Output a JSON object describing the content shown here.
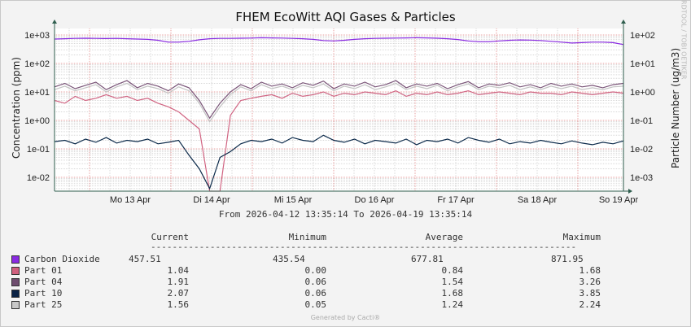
{
  "chart_data": {
    "type": "line",
    "title": "FHEM EcoWitt AQI Gases & Particles",
    "ylabel": "Concentration (ppm)",
    "ylabel_right": "Particle Number (ug/m3)",
    "yscale": "log",
    "ylim": [
      0.0032,
      1700
    ],
    "yticks": [
      "1e-02",
      "1e-01",
      "1e+00",
      "1e+01",
      "1e+02",
      "1e+03"
    ],
    "yticks_right": [
      "1e-03",
      "1e-02",
      "1e-01",
      "1e+00",
      "1e+01",
      "1e+02"
    ],
    "xticks": [
      "Mo 13 Apr",
      "Di 14 Apr",
      "Mi 15 Apr",
      "Do 16 Apr",
      "Fr 17 Apr",
      "Sa 18 Apr",
      "So 19 Apr"
    ],
    "time_range": "From 2026-04-12 13:35:14 To 2026-04-19 13:35:14",
    "watermark": "RRDTOOL / TOBI OETIKER",
    "series": [
      {
        "name": "Part 25",
        "color": "#c4c4c4",
        "values": [
          12,
          16,
          11,
          14,
          18,
          10,
          15,
          20,
          12,
          16,
          13,
          9,
          15,
          11,
          4,
          0.9,
          3,
          8,
          15,
          11,
          18,
          13,
          16,
          12,
          17,
          14,
          19,
          11,
          16,
          13,
          18,
          12,
          15,
          20,
          12,
          16,
          13,
          17,
          11,
          15,
          19,
          12,
          16,
          14,
          17,
          12,
          15,
          12,
          16,
          13,
          16,
          12,
          14,
          12,
          15,
          16
        ]
      },
      {
        "name": "Part 04",
        "color": "#7a5578",
        "values": [
          15,
          20,
          13,
          17,
          22,
          12,
          18,
          25,
          14,
          20,
          16,
          11,
          19,
          14,
          5,
          1.2,
          4,
          10,
          18,
          13,
          22,
          16,
          19,
          14,
          21,
          17,
          24,
          13,
          19,
          16,
          22,
          15,
          18,
          25,
          14,
          19,
          16,
          20,
          13,
          18,
          23,
          14,
          19,
          17,
          21,
          15,
          18,
          14,
          20,
          16,
          19,
          15,
          17,
          14,
          18,
          20
        ]
      },
      {
        "name": "Part 01",
        "color": "#d16583",
        "values": [
          5,
          4,
          7,
          5,
          6,
          8,
          6,
          7,
          5,
          6,
          4,
          3,
          2,
          1,
          0.5,
          0.002,
          0.002,
          1.5,
          5,
          6,
          7,
          8,
          6,
          9,
          7,
          8,
          10,
          7,
          9,
          8,
          10,
          9,
          8,
          11,
          7,
          9,
          8,
          10,
          8,
          9,
          11,
          8,
          9,
          10,
          9,
          8,
          10,
          9,
          9,
          8,
          10,
          9,
          8,
          9,
          10,
          9
        ]
      },
      {
        "name": "Part 10",
        "color": "#0c2a4a",
        "values": [
          0.18,
          0.2,
          0.15,
          0.22,
          0.17,
          0.25,
          0.16,
          0.2,
          0.18,
          0.22,
          0.15,
          0.17,
          0.2,
          0.06,
          0.02,
          0.004,
          0.05,
          0.08,
          0.15,
          0.2,
          0.18,
          0.22,
          0.16,
          0.25,
          0.2,
          0.18,
          0.3,
          0.2,
          0.17,
          0.22,
          0.15,
          0.2,
          0.18,
          0.16,
          0.22,
          0.14,
          0.2,
          0.18,
          0.22,
          0.16,
          0.25,
          0.2,
          0.17,
          0.22,
          0.15,
          0.18,
          0.16,
          0.2,
          0.17,
          0.15,
          0.19,
          0.16,
          0.14,
          0.17,
          0.15,
          0.19
        ]
      },
      {
        "name": "Carbon Dioxide",
        "color": "#8a2be2",
        "values": [
          720,
          740,
          760,
          770,
          760,
          750,
          760,
          740,
          720,
          700,
          650,
          560,
          560,
          600,
          680,
          740,
          760,
          760,
          770,
          780,
          800,
          790,
          780,
          760,
          740,
          700,
          640,
          620,
          650,
          700,
          740,
          760,
          770,
          780,
          790,
          800,
          790,
          770,
          740,
          690,
          620,
          580,
          580,
          620,
          650,
          670,
          660,
          640,
          600,
          560,
          520,
          540,
          560,
          560,
          540,
          460
        ]
      }
    ]
  },
  "legend": {
    "headers": [
      "Current",
      "Minimum",
      "Average",
      "Maximum"
    ],
    "divider": "-------------------------------------------------------------------------------",
    "rows": [
      {
        "name": "Carbon Dioxide",
        "color": "#8a2be2",
        "current": "457.51",
        "minimum": "435.54",
        "average": "677.81",
        "maximum": "871.95"
      },
      {
        "name": "Part 01",
        "color": "#d0607e",
        "current": "1.04",
        "minimum": "0.00",
        "average": "0.84",
        "maximum": "1.68"
      },
      {
        "name": "Part 04",
        "color": "#6e4d6e",
        "current": "1.91",
        "minimum": "0.06",
        "average": "1.54",
        "maximum": "3.26"
      },
      {
        "name": "Part 10",
        "color": "#0a2244",
        "current": "2.07",
        "minimum": "0.06",
        "average": "1.68",
        "maximum": "3.85"
      },
      {
        "name": "Part 25",
        "color": "#c8c8c8",
        "current": "1.56",
        "minimum": "0.05",
        "average": "1.24",
        "maximum": "2.24"
      }
    ]
  },
  "footer": "Generated by Cacti®"
}
